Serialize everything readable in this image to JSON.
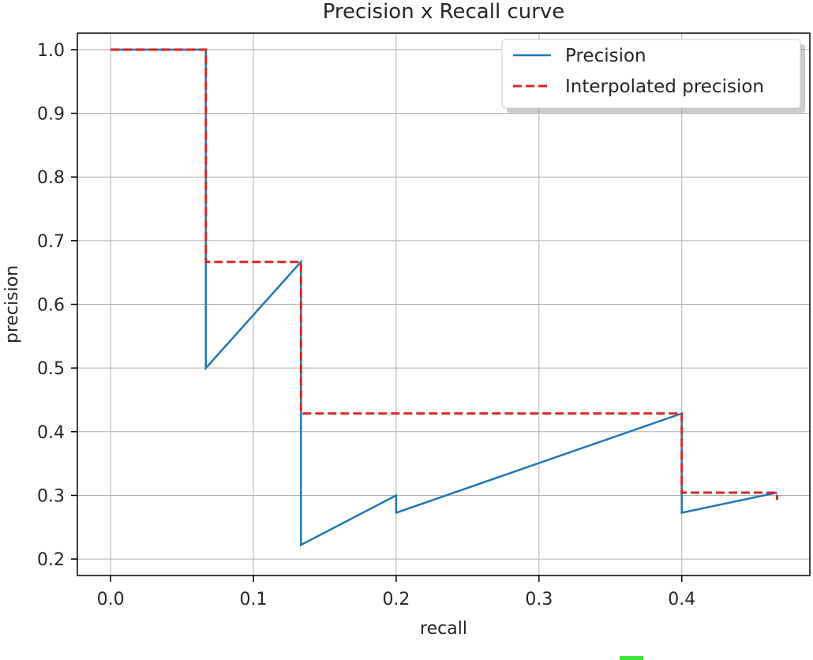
{
  "chart_data": {
    "type": "line",
    "title": "Precision x Recall curve",
    "xlabel": "recall",
    "ylabel": "precision",
    "xlim": [
      -0.0233,
      0.4897
    ],
    "ylim": [
      0.1741,
      1.0259
    ],
    "xticks": [
      0.0,
      0.1,
      0.2,
      0.3,
      0.4
    ],
    "xtick_labels": [
      "0.0",
      "0.1",
      "0.2",
      "0.3",
      "0.4"
    ],
    "yticks": [
      0.2,
      0.3,
      0.4,
      0.5,
      0.6,
      0.7,
      0.8,
      0.9,
      1.0
    ],
    "ytick_labels": [
      "0.2",
      "0.3",
      "0.4",
      "0.5",
      "0.6",
      "0.7",
      "0.8",
      "0.9",
      "1.0"
    ],
    "grid": true,
    "legend_position": "top-right",
    "series": [
      {
        "name": "Precision",
        "color": "#1f77b4",
        "style": "solid",
        "x": [
          0.0,
          0.0667,
          0.0667,
          0.1333,
          0.1333,
          0.2,
          0.2,
          0.4,
          0.4,
          0.4667
        ],
        "y": [
          1.0,
          1.0,
          0.5,
          0.6667,
          0.2222,
          0.3,
          0.2727,
          0.4286,
          0.2727,
          0.3043
        ]
      },
      {
        "name": "Interpolated precision",
        "color": "#d62728",
        "style": "dashed",
        "x": [
          0.0,
          0.0667,
          0.0667,
          0.1333,
          0.1333,
          0.4,
          0.4,
          0.4667,
          0.4667
        ],
        "y": [
          1.0,
          1.0,
          0.6667,
          0.6667,
          0.4286,
          0.4286,
          0.3043,
          0.3043,
          0.2929
        ]
      }
    ]
  }
}
